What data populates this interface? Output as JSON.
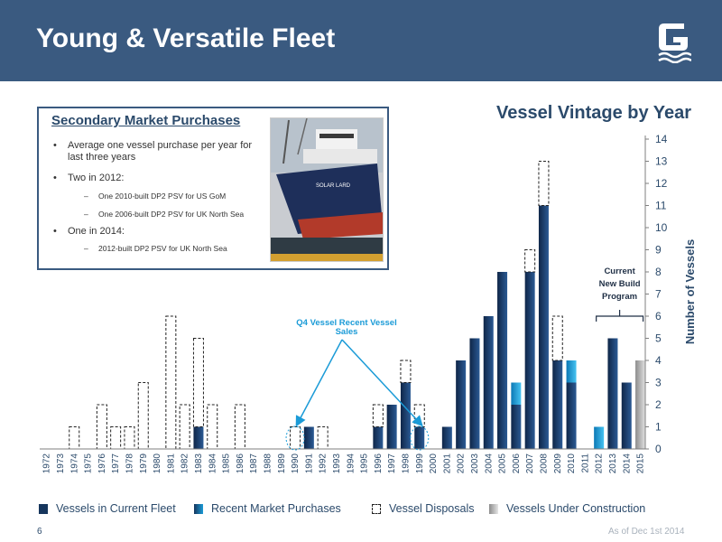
{
  "header": {
    "title": "Young & Versatile Fleet"
  },
  "callout": {
    "title": "Secondary Market Purchases",
    "bullets": [
      {
        "text": "Average one vessel purchase per year for last three years",
        "sub": []
      },
      {
        "text": "Two in 2012:",
        "sub": [
          "One 2010-built DP2 PSV for US GoM",
          "One 2006-built DP2 PSV for UK North Sea"
        ]
      },
      {
        "text": "One in 2014:",
        "sub": [
          "2012-built DP2 PSV for UK North Sea"
        ]
      }
    ]
  },
  "chart_data": {
    "type": "bar",
    "stacked": true,
    "title": "Vessel Vintage by Year",
    "ylabel": "Number of Vessels",
    "ylim": [
      0,
      14
    ],
    "y_ticks": [
      "0",
      "1",
      "2",
      "3",
      "4",
      "5",
      "6",
      "7",
      "8",
      "9",
      "10",
      "11",
      "12",
      "13",
      "14"
    ],
    "y_axis_side": "right",
    "grid": false,
    "categories": [
      "1972",
      "1973",
      "1974",
      "1975",
      "1976",
      "1977",
      "1978",
      "1979",
      "1980",
      "1981",
      "1982",
      "1983",
      "1984",
      "1985",
      "1986",
      "1987",
      "1988",
      "1989",
      "1990",
      "1991",
      "1992",
      "1993",
      "1994",
      "1995",
      "1996",
      "1997",
      "1998",
      "1999",
      "2000",
      "2001",
      "2002",
      "2003",
      "2004",
      "2005",
      "2006",
      "2007",
      "2008",
      "2009",
      "2010",
      "2011",
      "2012",
      "2013",
      "2014",
      "2015"
    ],
    "series": [
      {
        "name": "Vessels in Current Fleet",
        "color": "#16365d",
        "values": [
          0,
          0,
          0,
          0,
          0,
          0,
          0,
          0,
          0,
          0,
          0,
          1,
          0,
          0,
          0,
          0,
          0,
          0,
          0,
          1,
          0,
          0,
          0,
          0,
          1,
          2,
          3,
          1,
          0,
          1,
          4,
          5,
          6,
          8,
          2,
          8,
          11,
          4,
          3,
          0,
          0,
          5,
          3,
          0
        ]
      },
      {
        "name": "Recent Market Purchases",
        "color": "#1b9bd7",
        "values": [
          0,
          0,
          0,
          0,
          0,
          0,
          0,
          0,
          0,
          0,
          0,
          0,
          0,
          0,
          0,
          0,
          0,
          0,
          0,
          0,
          0,
          0,
          0,
          0,
          0,
          0,
          0,
          0,
          0,
          0,
          0,
          0,
          0,
          0,
          1,
          0,
          0,
          0,
          1,
          0,
          1,
          0,
          0,
          0
        ]
      },
      {
        "name": "Vessel Disposals",
        "color": "#ffffff",
        "values": [
          0,
          0,
          1,
          0,
          2,
          1,
          1,
          3,
          0,
          6,
          2,
          4,
          2,
          0,
          2,
          0,
          0,
          0,
          1,
          0,
          1,
          0,
          0,
          0,
          1,
          0,
          1,
          1,
          0,
          0,
          0,
          0,
          0,
          0,
          0,
          1,
          2,
          2,
          0,
          0,
          0,
          0,
          0,
          0
        ]
      },
      {
        "name": "Vessels Under Construction",
        "color": "#bfbfbf",
        "values": [
          0,
          0,
          0,
          0,
          0,
          0,
          0,
          0,
          0,
          0,
          0,
          0,
          0,
          0,
          0,
          0,
          0,
          0,
          0,
          0,
          0,
          0,
          0,
          0,
          0,
          0,
          0,
          0,
          0,
          0,
          0,
          0,
          0,
          0,
          0,
          0,
          0,
          0,
          0,
          0,
          0,
          0,
          0,
          4
        ]
      }
    ],
    "annotations": [
      {
        "text": "Q4 Vessel Recent Vessel Sales",
        "points_to": [
          "1990",
          "1999"
        ]
      },
      {
        "text": "Current New Build Program",
        "spans": [
          "2012",
          "2015"
        ]
      }
    ],
    "legend_position": "bottom"
  },
  "footer": {
    "page_number": "6",
    "as_of": "As of Dec 1st 2014"
  }
}
